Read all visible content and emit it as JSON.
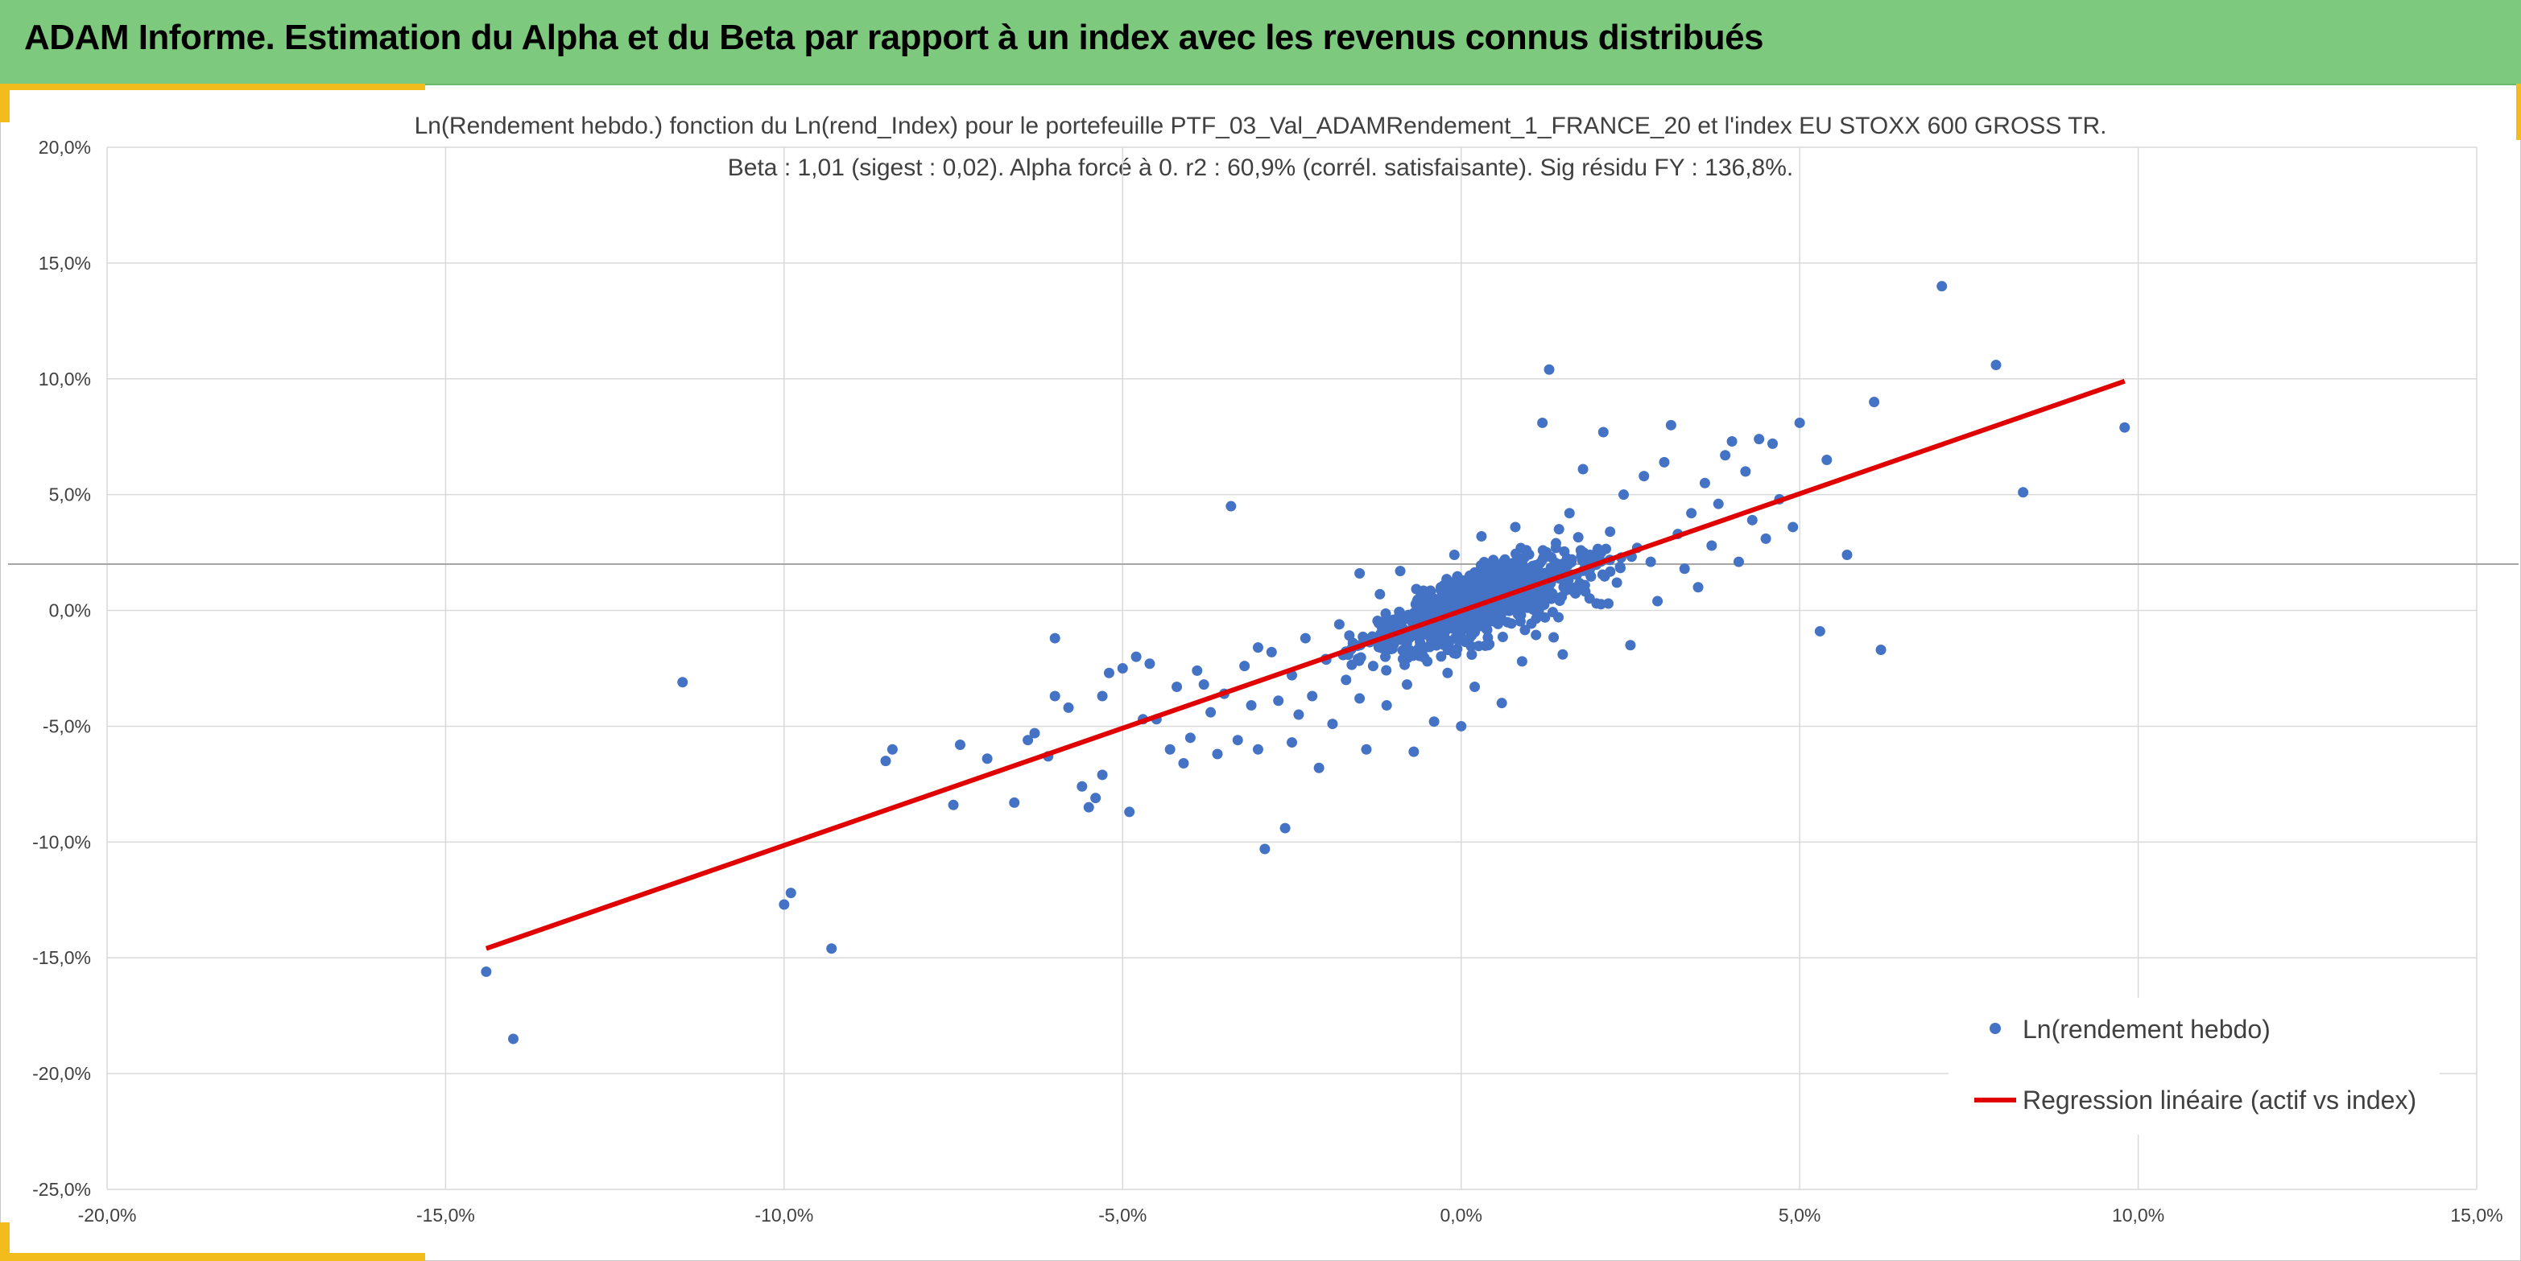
{
  "header": {
    "title": "ADAM Informe. Estimation du Alpha et du Beta par rapport à un index avec les revenus connus distribués"
  },
  "chart_data": {
    "type": "scatter",
    "title": "Ln(Rendement hebdo.) fonction du Ln(rend_Index) pour le portefeuille PTF_03_Val_ADAMRendement_1_FRANCE_20 et l'index EU STOXX 600 GROSS TR.",
    "subtitle": "Beta : 1,01 (sigest : 0,02). Alpha forcé à 0. r2 : 60,9% (corrél. satisfaisante). Sig résidu FY : 136,8%.",
    "xlabel": "",
    "ylabel": "",
    "xlim": [
      -0.2,
      0.15
    ],
    "ylim": [
      -0.25,
      0.2
    ],
    "x_ticks": [
      "-20,0%",
      "-15,0%",
      "-10,0%",
      "-5,0%",
      "0,0%",
      "5,0%",
      "10,0%",
      "15,0%"
    ],
    "y_ticks": [
      "20,0%",
      "15,0%",
      "10,0%",
      "5,0%",
      "0,0%",
      "-5,0%",
      "-10,0%",
      "-15,0%",
      "-20,0%",
      "-25,0%"
    ],
    "grid": true,
    "legend_position": "bottom-right",
    "colors": {
      "points": "#4472c4",
      "line": "#e00000"
    },
    "series": [
      {
        "name": "Ln(rendement hebdo)",
        "type": "scatter",
        "points": [
          [
            -0.144,
            -0.156
          ],
          [
            -0.14,
            -0.185
          ],
          [
            -0.115,
            -0.031
          ],
          [
            -0.1,
            -0.127
          ],
          [
            -0.099,
            -0.122
          ],
          [
            -0.093,
            -0.146
          ],
          [
            -0.085,
            -0.065
          ],
          [
            -0.084,
            -0.06
          ],
          [
            -0.075,
            -0.084
          ],
          [
            -0.074,
            -0.058
          ],
          [
            -0.07,
            -0.064
          ],
          [
            -0.066,
            -0.083
          ],
          [
            -0.064,
            -0.056
          ],
          [
            -0.063,
            -0.053
          ],
          [
            -0.061,
            -0.063
          ],
          [
            -0.06,
            -0.037
          ],
          [
            -0.06,
            -0.012
          ],
          [
            -0.058,
            -0.042
          ],
          [
            -0.056,
            -0.076
          ],
          [
            -0.055,
            -0.085
          ],
          [
            -0.054,
            -0.081
          ],
          [
            -0.053,
            -0.071
          ],
          [
            -0.053,
            -0.037
          ],
          [
            -0.052,
            -0.027
          ],
          [
            -0.05,
            -0.025
          ],
          [
            -0.049,
            -0.087
          ],
          [
            -0.048,
            -0.02
          ],
          [
            -0.047,
            -0.047
          ],
          [
            -0.046,
            -0.023
          ],
          [
            -0.045,
            -0.047
          ],
          [
            -0.043,
            -0.06
          ],
          [
            -0.042,
            -0.033
          ],
          [
            -0.041,
            -0.066
          ],
          [
            -0.04,
            -0.055
          ],
          [
            -0.039,
            -0.026
          ],
          [
            -0.038,
            -0.032
          ],
          [
            -0.037,
            -0.044
          ],
          [
            -0.036,
            -0.062
          ],
          [
            -0.035,
            -0.036
          ],
          [
            -0.034,
            0.045
          ],
          [
            -0.033,
            -0.056
          ],
          [
            -0.032,
            -0.024
          ],
          [
            -0.031,
            -0.041
          ],
          [
            -0.03,
            -0.016
          ],
          [
            -0.03,
            -0.06
          ],
          [
            -0.029,
            -0.103
          ],
          [
            -0.028,
            -0.018
          ],
          [
            -0.027,
            -0.039
          ],
          [
            -0.026,
            -0.094
          ],
          [
            -0.025,
            -0.028
          ],
          [
            -0.025,
            -0.057
          ],
          [
            -0.024,
            -0.045
          ],
          [
            -0.023,
            -0.012
          ],
          [
            -0.022,
            -0.037
          ],
          [
            -0.021,
            -0.068
          ],
          [
            -0.02,
            -0.021
          ],
          [
            -0.019,
            -0.049
          ],
          [
            -0.018,
            -0.006
          ],
          [
            -0.017,
            -0.03
          ],
          [
            -0.016,
            -0.014
          ],
          [
            -0.015,
            0.016
          ],
          [
            -0.015,
            -0.038
          ],
          [
            -0.014,
            -0.06
          ],
          [
            -0.013,
            -0.024
          ],
          [
            -0.012,
            0.007
          ],
          [
            -0.011,
            -0.041
          ],
          [
            -0.01,
            -0.004
          ],
          [
            -0.009,
            0.017
          ],
          [
            -0.008,
            -0.032
          ],
          [
            -0.007,
            -0.061
          ],
          [
            -0.006,
            0.006
          ],
          [
            -0.005,
            -0.022
          ],
          [
            -0.004,
            -0.048
          ],
          [
            -0.003,
            0.01
          ],
          [
            -0.002,
            -0.027
          ],
          [
            -0.001,
            0.024
          ],
          [
            0.0,
            -0.008
          ],
          [
            0.0,
            -0.05
          ],
          [
            0.001,
            0.011
          ],
          [
            0.002,
            -0.033
          ],
          [
            0.003,
            0.032
          ],
          [
            0.004,
            -0.015
          ],
          [
            0.005,
            0.019
          ],
          [
            0.006,
            -0.04
          ],
          [
            0.007,
            0.008
          ],
          [
            0.008,
            0.036
          ],
          [
            0.009,
            -0.022
          ],
          [
            0.01,
            0.015
          ],
          [
            0.011,
            0.001
          ],
          [
            0.012,
            0.081
          ],
          [
            0.013,
            0.104
          ],
          [
            0.014,
            0.027
          ],
          [
            0.015,
            -0.019
          ],
          [
            0.016,
            0.042
          ],
          [
            0.017,
            0.009
          ],
          [
            0.018,
            0.061
          ],
          [
            0.019,
            0.024
          ],
          [
            0.02,
            0.003
          ],
          [
            0.021,
            0.077
          ],
          [
            0.022,
            0.034
          ],
          [
            0.023,
            0.012
          ],
          [
            0.024,
            0.05
          ],
          [
            0.025,
            -0.015
          ],
          [
            0.026,
            0.027
          ],
          [
            0.027,
            0.058
          ],
          [
            0.028,
            0.021
          ],
          [
            0.029,
            0.004
          ],
          [
            0.03,
            0.064
          ],
          [
            0.031,
            0.08
          ],
          [
            0.032,
            0.033
          ],
          [
            0.033,
            0.018
          ],
          [
            0.034,
            0.042
          ],
          [
            0.035,
            0.01
          ],
          [
            0.036,
            0.055
          ],
          [
            0.037,
            0.028
          ],
          [
            0.038,
            0.046
          ],
          [
            0.039,
            0.067
          ],
          [
            0.04,
            0.073
          ],
          [
            0.041,
            0.021
          ],
          [
            0.042,
            0.06
          ],
          [
            0.043,
            0.039
          ],
          [
            0.044,
            0.074
          ],
          [
            0.045,
            0.031
          ],
          [
            0.046,
            0.072
          ],
          [
            0.047,
            0.048
          ],
          [
            0.049,
            0.036
          ],
          [
            0.05,
            0.081
          ],
          [
            0.053,
            -0.009
          ],
          [
            0.054,
            0.065
          ],
          [
            0.057,
            0.024
          ],
          [
            0.061,
            0.09
          ],
          [
            0.062,
            -0.017
          ],
          [
            0.071,
            0.14
          ],
          [
            0.079,
            0.106
          ],
          [
            0.083,
            0.051
          ],
          [
            0.098,
            0.079
          ]
        ]
      },
      {
        "name": "Regression linéaire (actif vs index)",
        "type": "line",
        "points": [
          [
            -0.144,
            -0.146
          ],
          [
            0.098,
            0.099
          ]
        ]
      }
    ]
  }
}
